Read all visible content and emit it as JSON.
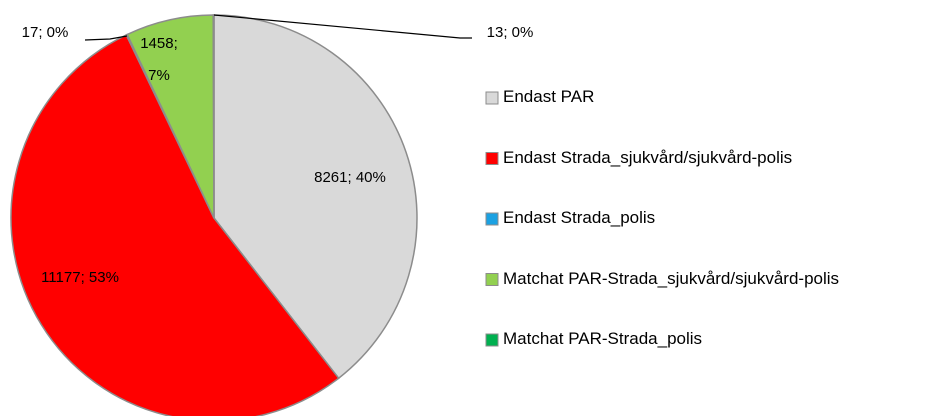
{
  "chart_data": {
    "type": "pie",
    "categories": [
      "Endast PAR",
      "Endast Strada_sjukvård/sjukvård-polis",
      "Endast Strada_polis",
      "Matchat PAR-Strada_sjukvård/sjukvård-polis",
      "Matchat PAR-Strada_polis"
    ],
    "values": [
      8261,
      11177,
      17,
      1458,
      13
    ],
    "value_labels": [
      "8261; 40%",
      "11177; 53%",
      "17; 0%",
      "1458; 7%",
      "13; 0%"
    ],
    "colors": [
      "#d9d9d9",
      "#ff0000",
      "#1ba1e2",
      "#92d050",
      "#00b050"
    ],
    "legend": "right"
  }
}
